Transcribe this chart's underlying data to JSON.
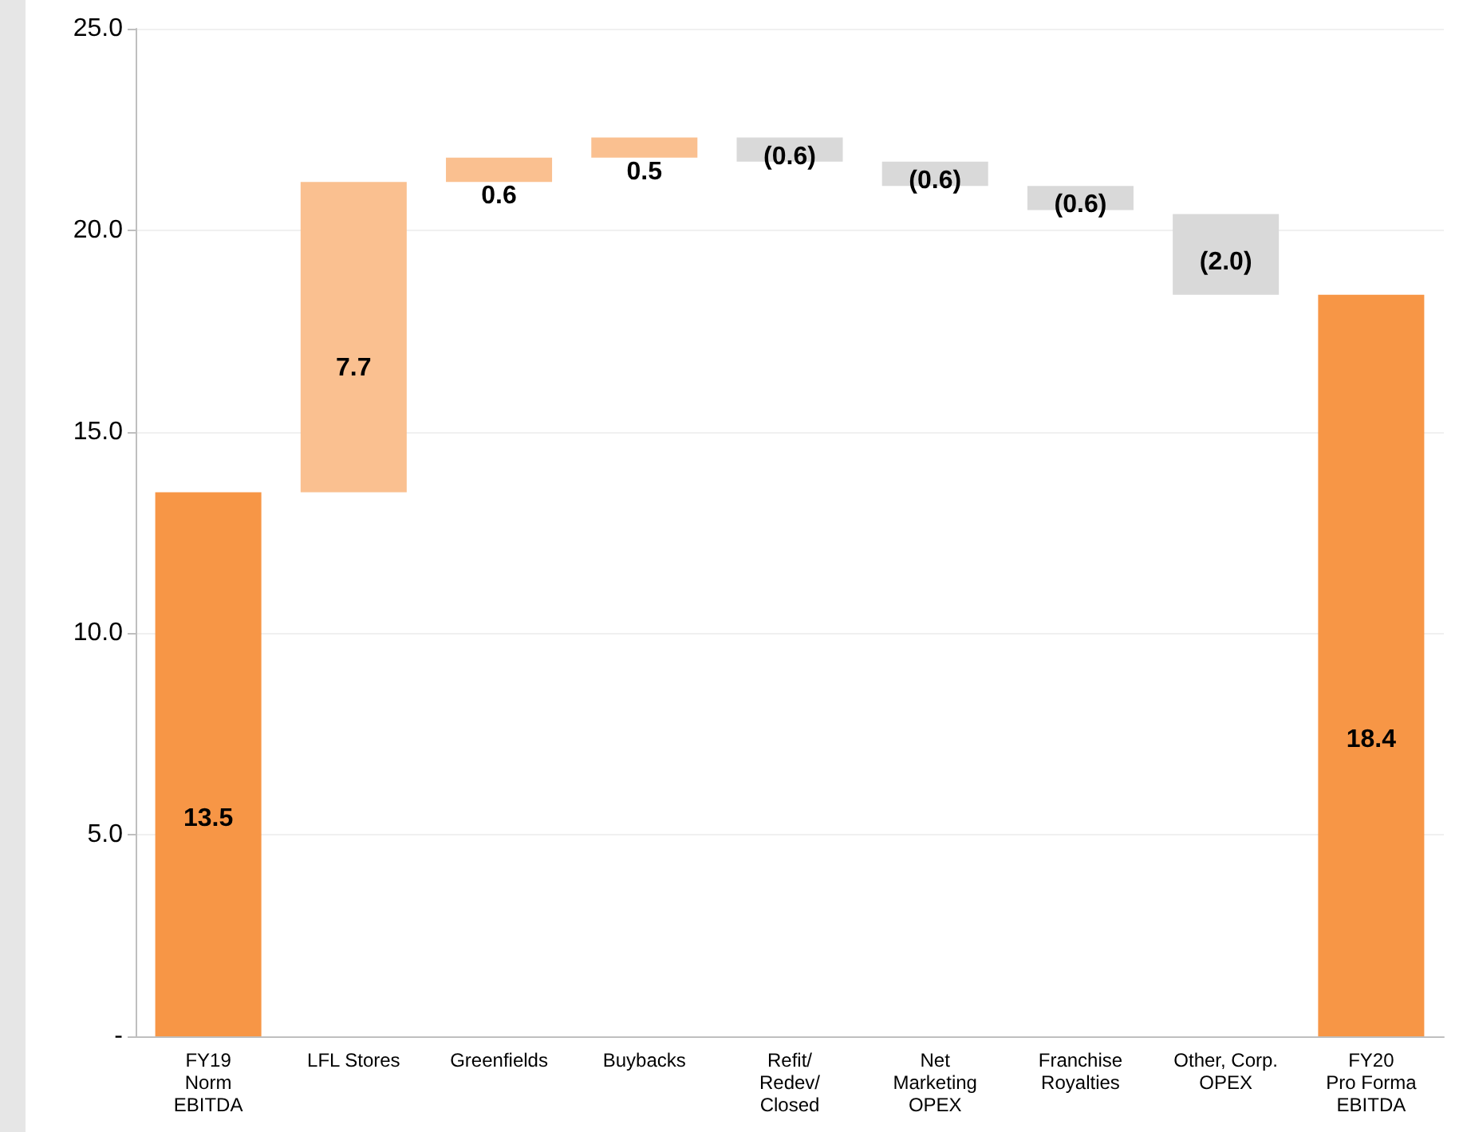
{
  "chart_data": {
    "type": "bar",
    "categories": [
      "FY19\nNorm\nEBITDA",
      "LFL Stores",
      "Greenfields",
      "Buybacks",
      "Refit/\nRedev/\nClosed",
      "Net\nMarketing\nOPEX",
      "Franchise\nRoyalties",
      "Other, Corp.\nOPEX",
      "FY20\nPro Forma\nEBITDA"
    ],
    "values": [
      13.5,
      7.7,
      0.6,
      0.5,
      -0.6,
      -0.6,
      -0.6,
      -2.0,
      18.4
    ],
    "base": [
      0,
      13.5,
      21.2,
      21.8,
      22.3,
      21.7,
      21.1,
      20.4,
      0
    ],
    "colors": [
      "#f79646",
      "#fac090",
      "#fac090",
      "#fac090",
      "#d9d9d9",
      "#d9d9d9",
      "#d9d9d9",
      "#d9d9d9",
      "#f79646"
    ],
    "value_labels": [
      "13.5",
      "7.7",
      "0.6",
      "0.5",
      "(0.6)",
      "(0.6)",
      "(0.6)",
      "(2.0)",
      "18.4"
    ],
    "ylim": [
      0,
      25
    ],
    "yticks": [
      {
        "value": 0,
        "label": "-"
      },
      {
        "value": 5,
        "label": "5.0"
      },
      {
        "value": 10,
        "label": "10.0"
      },
      {
        "value": 15,
        "label": "15.0"
      },
      {
        "value": 20,
        "label": "20.0"
      },
      {
        "value": 25,
        "label": "25.0"
      }
    ],
    "grid": true
  }
}
